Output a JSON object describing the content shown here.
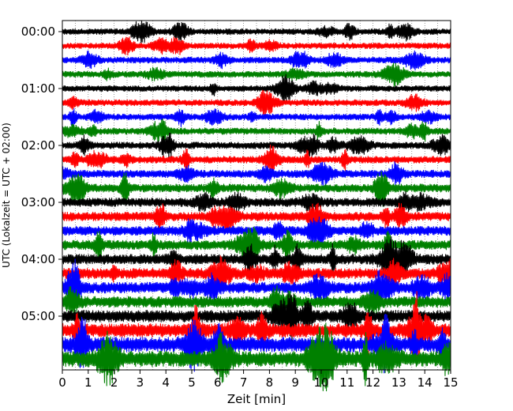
{
  "chart_data": {
    "type": "line",
    "title": "",
    "xlabel": "Zeit  [min]",
    "ylabel": "UTC (Lokalzeit = UTC + 02:00)",
    "xlim": [
      0,
      15
    ],
    "x_ticks": [
      0,
      1,
      2,
      3,
      4,
      5,
      6,
      7,
      8,
      9,
      10,
      11,
      12,
      13,
      14,
      15
    ],
    "x_minor_grid_step": 0.5,
    "x_grid": "dotted",
    "y_ticks": [
      "00:00",
      "01:00",
      "02:00",
      "03:00",
      "04:00",
      "05:00"
    ],
    "trace_interval_min": 15,
    "trace_count": 24,
    "trace_colors": [
      "#000000",
      "#ff0000",
      "#0000ff",
      "#008000"
    ],
    "trace_amplitude": [
      0.2,
      0.2,
      0.21,
      0.21,
      0.2,
      0.21,
      0.21,
      0.22,
      0.23,
      0.24,
      0.26,
      0.28,
      0.3,
      0.31,
      0.32,
      0.33,
      0.35,
      0.36,
      0.38,
      0.38,
      0.42,
      0.48,
      0.52,
      0.55
    ]
  }
}
